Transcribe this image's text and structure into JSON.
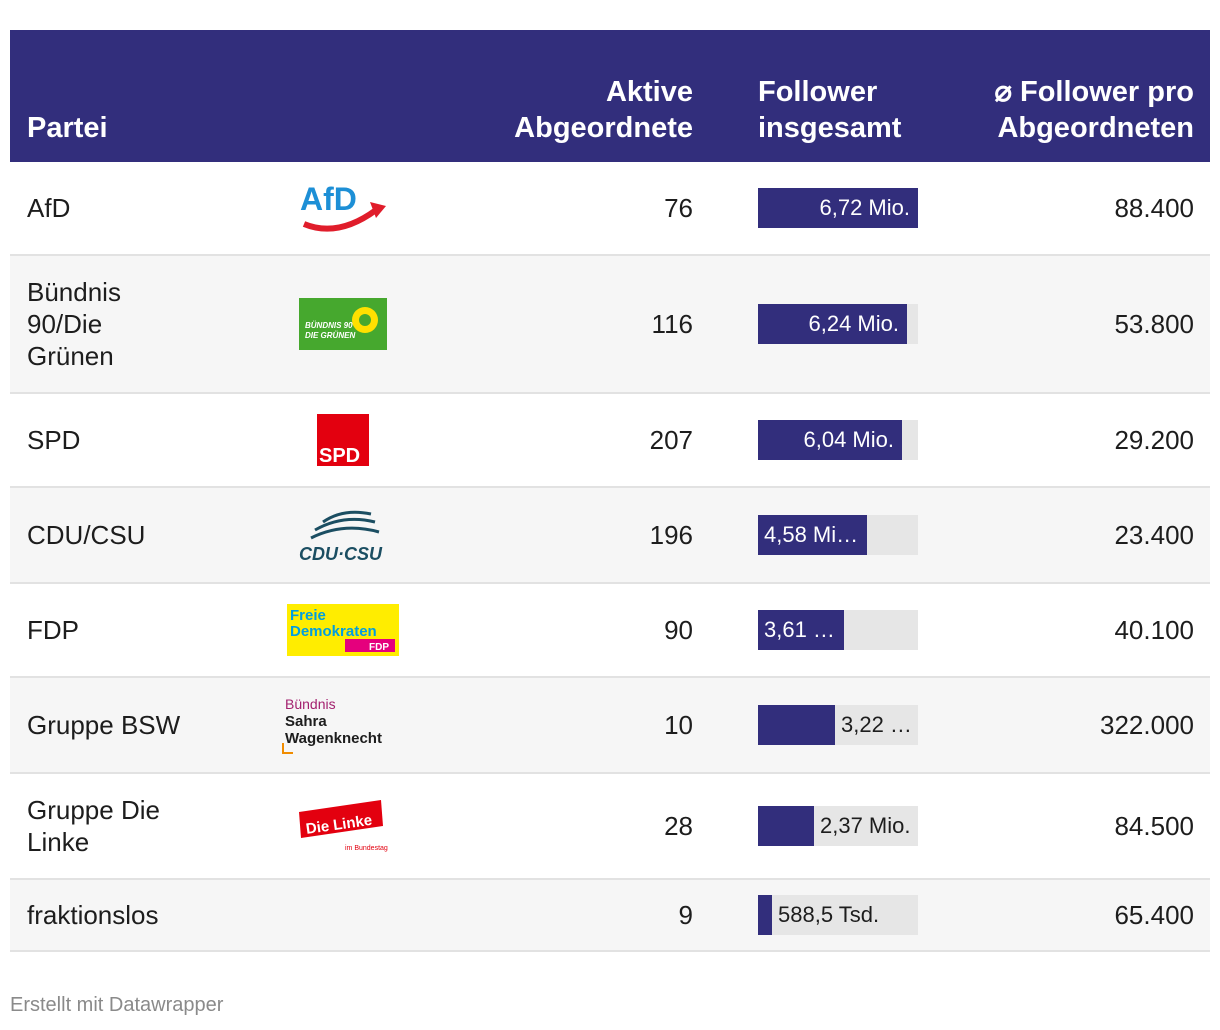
{
  "table": {
    "headers": {
      "party": "Partei",
      "active_line1": "Aktive",
      "active_line2": "Abgeordnete",
      "followers_line1": "Follower",
      "followers_line2": "insgesamt",
      "avg_line1": "⌀ Follower pro",
      "avg_line2": "Abgeordneten"
    },
    "colors": {
      "header_bg": "#322e7c",
      "bar": "#322e7c",
      "bar_track": "#e6e6e6",
      "alt_row": "#f6f6f6"
    },
    "rows": [
      {
        "party_lines": [
          "AfD"
        ],
        "logo": "afd-logo",
        "active": "76",
        "followers_label": "6,72 Mio.",
        "followers_value": 6720000,
        "avg": "88.400"
      },
      {
        "party_lines": [
          "Bündnis",
          "90/Die",
          "Grünen"
        ],
        "logo": "gruene-logo",
        "logo_text": [
          "BÜNDNIS 90",
          "DIE GRÜNEN"
        ],
        "active": "116",
        "followers_label": "6,24 Mio.",
        "followers_value": 6240000,
        "avg": "53.800"
      },
      {
        "party_lines": [
          "SPD"
        ],
        "logo": "spd-logo",
        "logo_text": [
          "SPD"
        ],
        "active": "207",
        "followers_label": "6,04 Mio.",
        "followers_value": 6040000,
        "avg": "29.200"
      },
      {
        "party_lines": [
          "CDU/CSU"
        ],
        "logo": "cdu-csu-logo",
        "logo_text": [
          "CDU·CSU"
        ],
        "active": "196",
        "followers_label": "4,58 Mi…",
        "followers_value": 4580000,
        "avg": "23.400"
      },
      {
        "party_lines": [
          "FDP"
        ],
        "logo": "fdp-logo",
        "logo_text": [
          "Freie",
          "Demokraten",
          "FDP"
        ],
        "active": "90",
        "followers_label": "3,61 …",
        "followers_value": 3610000,
        "avg": "40.100"
      },
      {
        "party_lines": [
          "Gruppe BSW"
        ],
        "logo": "bsw-logo",
        "logo_text": [
          "Bündnis",
          "Sahra",
          "Wagenknecht"
        ],
        "active": "10",
        "followers_label": "3,22 …",
        "followers_value": 3220000,
        "avg": "322.000"
      },
      {
        "party_lines": [
          "Gruppe Die",
          "Linke"
        ],
        "logo": "linke-logo",
        "logo_text": [
          "Die Linke",
          "im Bundestag"
        ],
        "active": "28",
        "followers_label": "2,37 Mio.",
        "followers_value": 2370000,
        "avg": "84.500"
      },
      {
        "party_lines": [
          "fraktionslos"
        ],
        "logo": "",
        "active": "9",
        "followers_label": "588,5 Tsd.",
        "followers_value": 588500,
        "avg": "65.400"
      }
    ]
  },
  "chart_data": {
    "type": "table",
    "columns": [
      "Partei",
      "Aktive Abgeordnete",
      "Follower insgesamt",
      "⌀ Follower pro Abgeordneten"
    ],
    "categories": [
      "AfD",
      "Bündnis 90/Die Grünen",
      "SPD",
      "CDU/CSU",
      "FDP",
      "Gruppe BSW",
      "Gruppe Die Linke",
      "fraktionslos"
    ],
    "series": [
      {
        "name": "Aktive Abgeordnete",
        "values": [
          76,
          116,
          207,
          196,
          90,
          10,
          28,
          9
        ]
      },
      {
        "name": "Follower insgesamt",
        "values": [
          6720000,
          6240000,
          6040000,
          4580000,
          3610000,
          3220000,
          2370000,
          588500
        ]
      },
      {
        "name": "⌀ Follower pro Abgeordneten",
        "values": [
          88400,
          53800,
          29200,
          23400,
          40100,
          322000,
          84500,
          65400
        ]
      }
    ],
    "bar_max": 6720000
  },
  "footer": {
    "credit": "Erstellt mit Datawrapper"
  }
}
